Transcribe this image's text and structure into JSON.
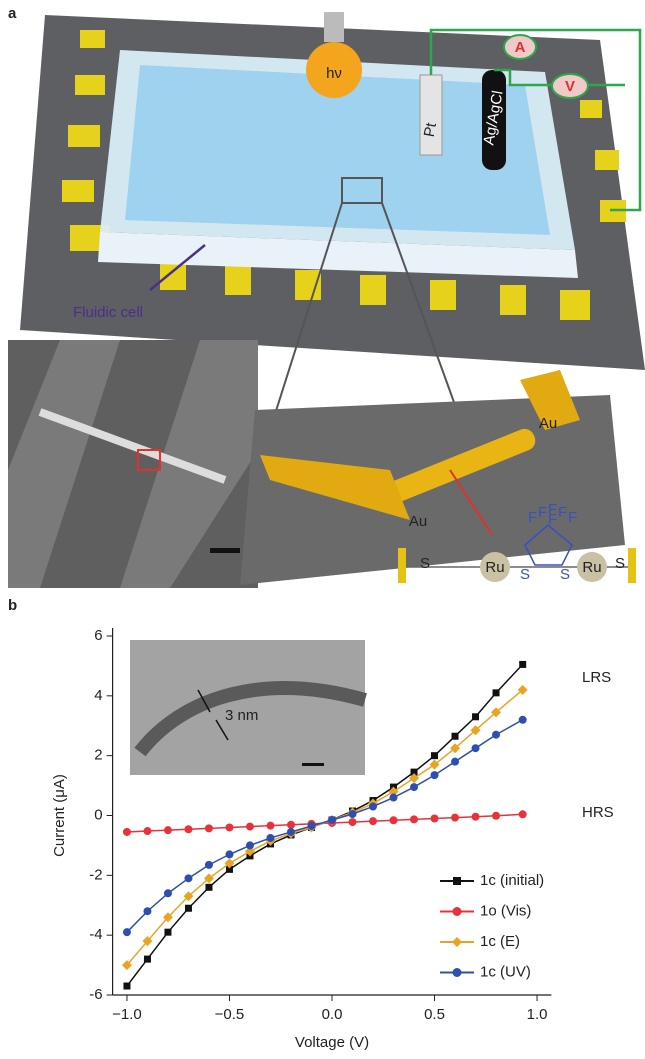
{
  "panel_a": {
    "label": "a",
    "bulb": "hν",
    "electrodes": [
      "Pt",
      "Ag/AgCl"
    ],
    "meters": [
      "A",
      "V"
    ],
    "caption": "Fluidic cell",
    "gold": [
      "Au",
      "Au"
    ],
    "metal": [
      "Ru",
      "Ru"
    ],
    "fluorine": [
      "F",
      "F",
      "F",
      "F",
      "F",
      "F"
    ],
    "sulfur": [
      "S",
      "S",
      "S",
      "S"
    ]
  },
  "chart_data": {
    "type": "line",
    "panel_label": "b",
    "xlabel": "Voltage (V)",
    "ylabel": "Current (μA)",
    "x": [
      -1.0,
      -0.9,
      -0.8,
      -0.7,
      -0.6,
      -0.5,
      -0.4,
      -0.3,
      -0.2,
      -0.1,
      0.0,
      0.1,
      0.2,
      0.3,
      0.4,
      0.5,
      0.6,
      0.7,
      0.8,
      0.93
    ],
    "series": [
      {
        "name": "1c (initial)",
        "color": "#111111",
        "marker": "square",
        "values": [
          -5.7,
          -4.8,
          -3.9,
          -3.1,
          -2.4,
          -1.8,
          -1.35,
          -0.95,
          -0.65,
          -0.4,
          -0.15,
          0.15,
          0.5,
          0.95,
          1.45,
          2.0,
          2.65,
          3.3,
          4.1,
          5.05
        ]
      },
      {
        "name": "1o (Vis)",
        "color": "#e8323a",
        "marker": "circle",
        "values": [
          -0.55,
          -0.52,
          -0.49,
          -0.46,
          -0.43,
          -0.4,
          -0.37,
          -0.34,
          -0.31,
          -0.28,
          -0.25,
          -0.22,
          -0.19,
          -0.16,
          -0.13,
          -0.1,
          -0.07,
          -0.04,
          -0.01,
          0.04
        ]
      },
      {
        "name": "1c (E)",
        "color": "#e8a524",
        "marker": "diamond",
        "values": [
          -5.0,
          -4.2,
          -3.4,
          -2.7,
          -2.1,
          -1.6,
          -1.2,
          -0.85,
          -0.6,
          -0.4,
          -0.15,
          0.1,
          0.4,
          0.8,
          1.25,
          1.7,
          2.25,
          2.85,
          3.45,
          4.2
        ]
      },
      {
        "name": "1c (UV)",
        "color": "#2c4fb0",
        "marker": "circle",
        "values": [
          -3.9,
          -3.2,
          -2.6,
          -2.1,
          -1.65,
          -1.3,
          -1.0,
          -0.75,
          -0.55,
          -0.35,
          -0.15,
          0.05,
          0.3,
          0.6,
          0.95,
          1.35,
          1.8,
          2.25,
          2.7,
          3.2
        ]
      }
    ],
    "annotations": [
      "LRS",
      "HRS",
      "3 nm"
    ],
    "xlim": [
      -1.07,
      1.07
    ],
    "ylim": [
      -6,
      6
    ],
    "xticks": [
      {
        "value": -1.0,
        "label": "−1.0"
      },
      {
        "value": -0.5,
        "label": "−0.5"
      },
      {
        "value": 0.0,
        "label": "0.0"
      },
      0.5,
      {
        "value": 1.0,
        "label": "1.0"
      }
    ],
    "yticks": [
      -6,
      -4,
      -2,
      0,
      2,
      4,
      6
    ],
    "grid": false,
    "legend": "lower right"
  }
}
